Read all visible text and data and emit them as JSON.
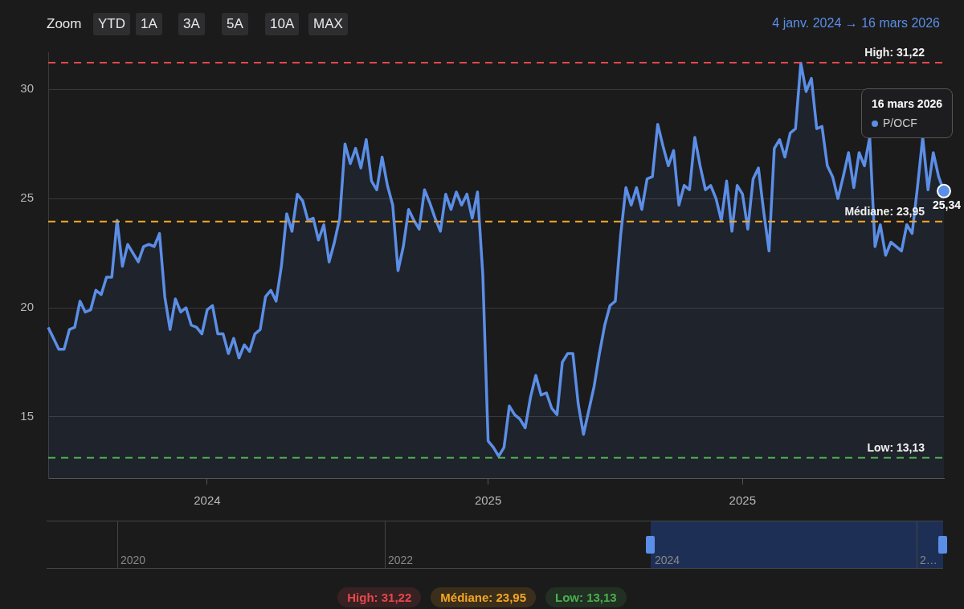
{
  "chart_data": {
    "type": "area",
    "annotations": [
      "Zoom",
      "YTD",
      "1A",
      "3A",
      "5A",
      "10A",
      "MAX",
      "4 janv. 2024  →  16 mars 2026",
      "16 mars 2026",
      "2020",
      "2022",
      "2024",
      "2…"
    ],
    "categories": [
      null,
      null,
      null,
      null,
      null,
      null,
      null,
      null,
      null,
      null,
      null,
      null,
      null,
      null,
      null,
      null,
      null,
      null,
      null,
      null,
      null,
      null,
      null,
      null,
      null,
      null,
      null,
      null,
      null,
      null,
      "2024",
      null,
      null,
      null,
      null,
      null,
      null,
      null,
      null,
      null,
      null,
      null,
      null,
      null,
      null,
      null,
      null,
      null,
      null,
      null,
      null,
      null,
      null,
      null,
      null,
      null,
      null,
      null,
      null,
      null,
      null,
      null,
      null,
      null,
      null,
      null,
      null,
      null,
      null,
      null,
      null,
      null,
      null,
      null,
      null,
      null,
      null,
      null,
      null,
      null,
      null,
      null,
      null,
      "2025",
      null,
      null,
      null,
      null,
      null,
      null,
      null,
      null,
      null,
      null,
      null,
      null,
      null,
      null,
      null,
      null,
      null,
      null,
      null,
      null,
      null,
      null,
      null,
      null,
      null,
      null,
      null,
      null,
      null,
      null,
      null,
      null,
      null,
      null,
      null,
      null,
      null,
      null,
      null,
      null,
      null,
      null,
      null,
      null,
      null,
      null,
      null,
      "2025",
      null,
      null,
      null,
      null,
      null,
      null,
      null,
      null,
      null,
      null,
      null,
      null,
      null,
      null,
      null,
      null,
      null,
      null,
      null,
      null,
      null,
      null,
      null,
      null,
      null,
      null,
      null,
      null,
      null,
      null,
      null,
      null,
      null,
      null,
      null,
      null,
      null,
      null
    ],
    "series": [
      {
        "name": "P/OCF",
        "color": "#5b8ee6",
        "values": [
          19.1,
          18.6,
          18.1,
          18.1,
          19.0,
          19.1,
          20.3,
          19.8,
          19.9,
          20.8,
          20.6,
          21.4,
          21.4,
          24.0,
          21.9,
          22.9,
          22.5,
          22.1,
          22.8,
          22.9,
          22.8,
          23.4,
          20.5,
          19.0,
          20.4,
          19.8,
          20.0,
          19.2,
          19.1,
          18.8,
          19.9,
          20.1,
          18.8,
          18.8,
          17.9,
          18.6,
          17.7,
          18.3,
          18.0,
          18.8,
          19.0,
          20.5,
          20.8,
          20.3,
          21.9,
          24.3,
          23.5,
          25.2,
          24.9,
          24.0,
          24.1,
          23.1,
          23.8,
          22.1,
          23.0,
          24.1,
          27.5,
          26.6,
          27.3,
          26.4,
          27.7,
          25.8,
          25.4,
          26.9,
          25.6,
          24.7,
          21.7,
          22.8,
          24.5,
          24.0,
          23.6,
          25.4,
          24.8,
          24.1,
          23.5,
          25.2,
          24.5,
          25.3,
          24.7,
          25.2,
          24.1,
          25.3,
          21.5,
          13.9,
          13.6,
          13.2,
          13.6,
          15.5,
          15.1,
          14.9,
          14.5,
          15.9,
          16.9,
          16.0,
          16.1,
          15.4,
          15.1,
          17.5,
          17.9,
          17.9,
          15.6,
          14.2,
          15.3,
          16.4,
          17.9,
          19.2,
          20.1,
          20.3,
          23.3,
          25.5,
          24.7,
          25.5,
          24.5,
          25.9,
          26.0,
          28.4,
          27.4,
          26.5,
          27.2,
          24.7,
          25.6,
          25.4,
          27.8,
          26.5,
          25.4,
          25.6,
          25.0,
          24.0,
          25.8,
          23.5,
          25.6,
          25.2,
          23.6,
          25.9,
          26.4,
          24.4,
          22.6,
          27.3,
          27.7,
          26.9,
          28.0,
          28.2,
          31.2,
          29.9,
          30.5,
          28.2,
          28.3,
          26.5,
          26.0,
          25.0,
          26.0,
          27.1,
          25.5,
          27.1,
          26.5,
          27.8,
          22.8,
          23.8,
          22.4,
          23.0,
          22.8,
          22.6,
          23.8,
          23.4,
          25.5,
          27.8,
          25.4,
          27.1,
          26.0,
          25.34
        ],
        "value_labels": [
          null,
          null,
          null,
          null,
          null,
          null,
          null,
          null,
          null,
          null,
          null,
          null,
          null,
          null,
          null,
          null,
          null,
          null,
          null,
          null,
          null,
          null,
          null,
          null,
          null,
          null,
          null,
          null,
          null,
          null,
          null,
          null,
          null,
          null,
          null,
          null,
          null,
          null,
          null,
          null,
          null,
          null,
          null,
          null,
          null,
          null,
          null,
          null,
          null,
          null,
          null,
          null,
          null,
          null,
          null,
          null,
          null,
          null,
          null,
          null,
          null,
          null,
          null,
          null,
          null,
          null,
          null,
          null,
          null,
          null,
          null,
          null,
          null,
          null,
          null,
          null,
          null,
          null,
          null,
          null,
          null,
          null,
          null,
          null,
          null,
          null,
          null,
          null,
          null,
          null,
          null,
          null,
          null,
          null,
          null,
          null,
          null,
          null,
          null,
          null,
          null,
          null,
          null,
          null,
          null,
          null,
          null,
          null,
          null,
          null,
          null,
          null,
          null,
          null,
          null,
          null,
          null,
          null,
          null,
          null,
          null,
          null,
          null,
          null,
          null,
          null,
          null,
          null,
          null,
          null,
          null,
          null,
          null,
          null,
          null,
          null,
          null,
          null,
          null,
          null,
          null,
          null,
          null,
          null,
          null,
          null,
          null,
          null,
          null,
          null,
          null,
          null,
          null,
          null,
          null,
          null,
          null,
          null,
          null,
          null,
          null,
          null,
          null,
          null,
          null,
          null,
          null,
          null,
          null,
          "25,34"
        ]
      }
    ],
    "ylim": [
      12.2,
      31.7
    ],
    "yticks": [
      15,
      20,
      25,
      30
    ],
    "grid": "y",
    "ref_lines": [
      {
        "axis": "y",
        "value": 31.22,
        "label": "High: 31,22",
        "color": "#e5484d",
        "line_style": "dashed"
      },
      {
        "axis": "y",
        "value": 23.95,
        "label": "Médiane: 23,95",
        "color": "#f5a623",
        "line_style": "dashed"
      },
      {
        "axis": "y",
        "value": 13.13,
        "label": "Low: 13,13",
        "color": "#4caf50",
        "line_style": "dashed"
      }
    ]
  }
}
